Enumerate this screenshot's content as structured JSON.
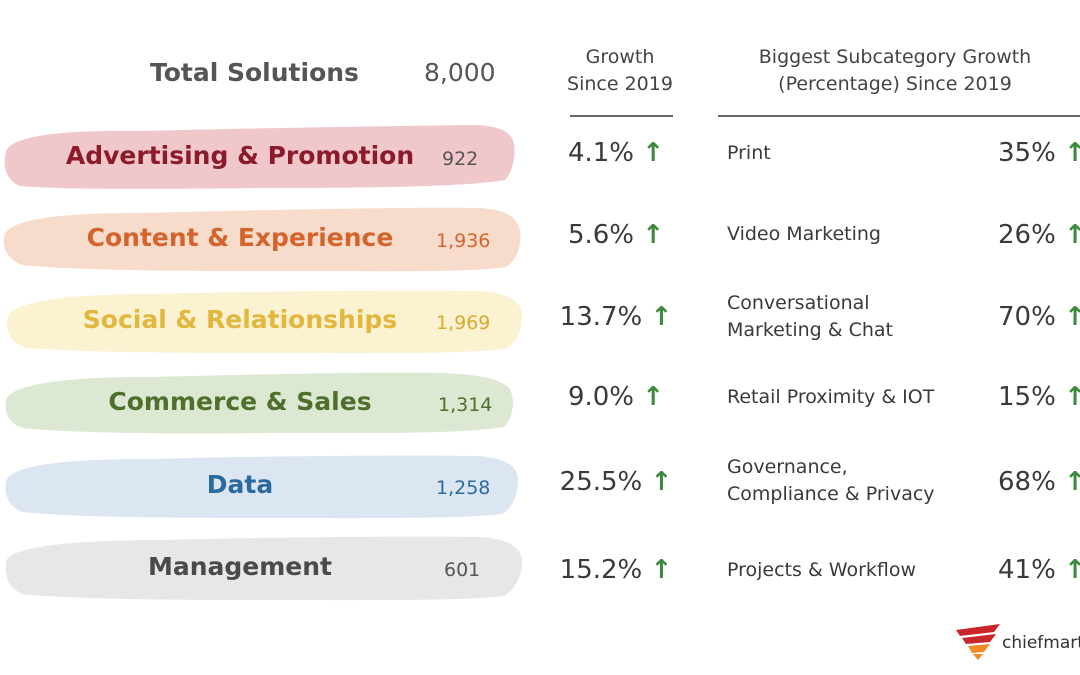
{
  "header": {
    "total_label": "Total Solutions",
    "total_value": "8,000",
    "growth_heading_line1": "Growth",
    "growth_heading_line2": "Since 2019",
    "subcategory_heading_line1": "Biggest Subcategory Growth",
    "subcategory_heading_line2": "(Percentage) Since 2019"
  },
  "growth_arrow": "↑",
  "rows": [
    {
      "category": "Advertising & Promotion",
      "count": "922",
      "growth": "4.1%",
      "sub_line1": "Print",
      "sub_line2": "",
      "sub_pct": "35%",
      "text_color": "#8b1a2b",
      "count_color": "#555555",
      "swoosh_color": "#f0c8cc"
    },
    {
      "category": "Content & Experience",
      "count": "1,936",
      "growth": "5.6%",
      "sub_line1": "Video Marketing",
      "sub_line2": "",
      "sub_pct": "26%",
      "text_color": "#d4642c",
      "count_color": "#d4642c",
      "swoosh_color": "#f7dccb"
    },
    {
      "category": "Social & Relationships",
      "count": "1,969",
      "growth": "13.7%",
      "sub_line1": "Conversational",
      "sub_line2": "Marketing & Chat",
      "sub_pct": "70%",
      "text_color": "#e3b63d",
      "count_color": "#d9aa2e",
      "swoosh_color": "#fbf2d2"
    },
    {
      "category": "Commerce & Sales",
      "count": "1,314",
      "growth": "9.0%",
      "sub_line1": "Retail Proximity & IOT",
      "sub_line2": "",
      "sub_pct": "15%",
      "text_color": "#4f6f2c",
      "count_color": "#4f6f2c",
      "swoosh_color": "#dce8d2"
    },
    {
      "category": "Data",
      "count": "1,258",
      "growth": "25.5%",
      "sub_line1": "Governance,",
      "sub_line2": "Compliance & Privacy",
      "sub_pct": "68%",
      "text_color": "#2b6aa0",
      "count_color": "#2b6aa0",
      "swoosh_color": "#dbe6f2"
    },
    {
      "category": "Management",
      "count": "601",
      "growth": "15.2%",
      "sub_line1": "Projects & Workflow",
      "sub_line2": "",
      "sub_pct": "41%",
      "text_color": "#4a4a4a",
      "count_color": "#555555",
      "swoosh_color": "#e6e7e9"
    }
  ],
  "logo": {
    "text": "chiefmartec",
    "mark_colors": [
      "#c9262c",
      "#f08a24"
    ]
  }
}
